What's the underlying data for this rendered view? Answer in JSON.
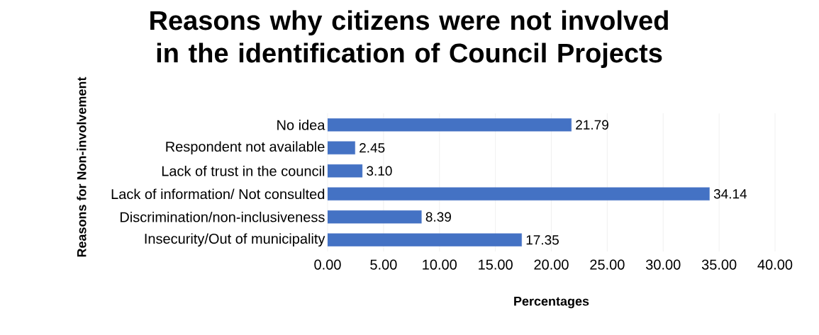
{
  "chart_data": {
    "type": "bar",
    "orientation": "horizontal",
    "title": "Reasons why citizens were not involved in the identification of Council Projects",
    "xlabel": "Percentages",
    "ylabel": "Reasons for Non-involvement",
    "categories": [
      "No idea",
      "Respondent not available",
      "Lack of trust in the council",
      "Lack of information/ Not consulted",
      "Discrimination/non-inclusiveness",
      "Insecurity/Out of municipality"
    ],
    "values": [
      21.79,
      2.45,
      3.1,
      34.14,
      8.39,
      17.35
    ],
    "value_labels": [
      "21.79",
      "2.45",
      "3.10",
      "34.14",
      "8.39",
      "17.35"
    ],
    "color": "#4472c4",
    "xlim": [
      0,
      40
    ],
    "xticks": [
      {
        "value": 0,
        "label": "0.00"
      },
      {
        "value": 5,
        "label": "5.00"
      },
      {
        "value": 10,
        "label": "10.00"
      },
      {
        "value": 15,
        "label": "15.00"
      },
      {
        "value": 20,
        "label": "20.00"
      },
      {
        "value": 25,
        "label": "25.00"
      },
      {
        "value": 30,
        "label": "30.00"
      },
      {
        "value": 35,
        "label": "35.00"
      },
      {
        "value": 40,
        "label": "40.00"
      }
    ],
    "grid": "x"
  }
}
